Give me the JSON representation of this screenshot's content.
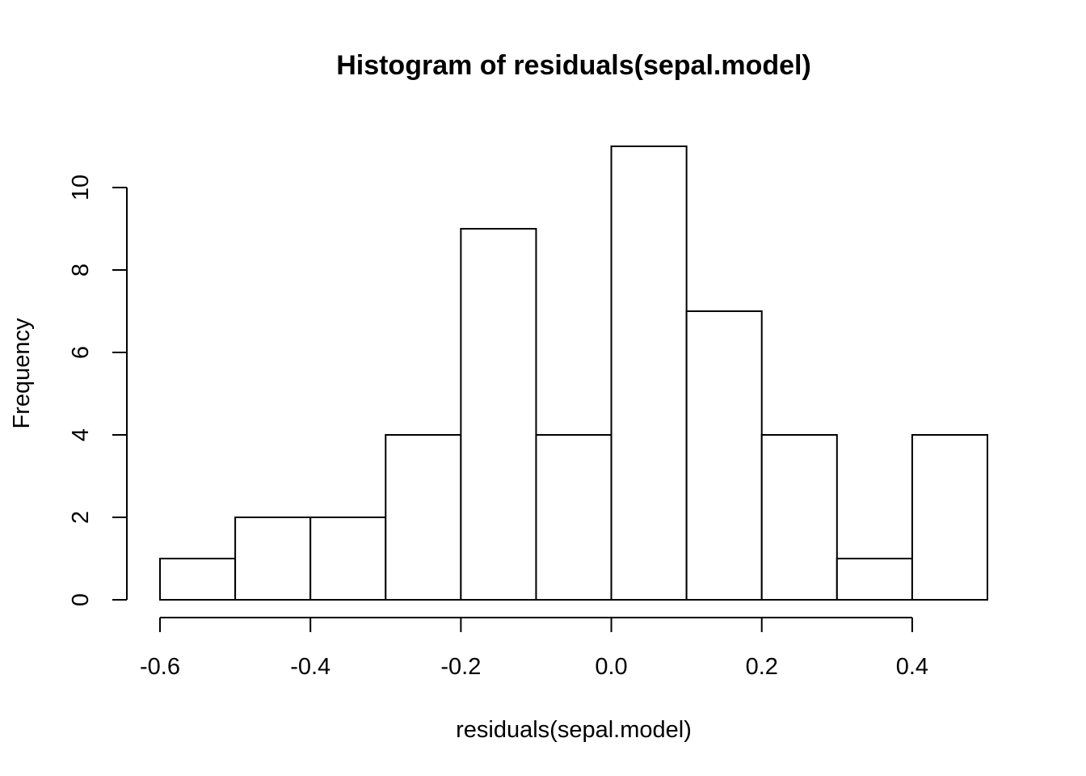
{
  "chart_data": {
    "type": "bar",
    "title": "Histogram of residuals(sepal.model)",
    "xlabel": "residuals(sepal.model)",
    "ylabel": "Frequency",
    "bins": [
      {
        "from": -0.6,
        "to": -0.5,
        "count": 1
      },
      {
        "from": -0.5,
        "to": -0.4,
        "count": 2
      },
      {
        "from": -0.4,
        "to": -0.3,
        "count": 2
      },
      {
        "from": -0.3,
        "to": -0.2,
        "count": 4
      },
      {
        "from": -0.2,
        "to": -0.1,
        "count": 9
      },
      {
        "from": -0.1,
        "to": 0.0,
        "count": 4
      },
      {
        "from": 0.0,
        "to": 0.1,
        "count": 11
      },
      {
        "from": 0.1,
        "to": 0.2,
        "count": 7
      },
      {
        "from": 0.2,
        "to": 0.3,
        "count": 4
      },
      {
        "from": 0.3,
        "to": 0.4,
        "count": 1
      },
      {
        "from": 0.4,
        "to": 0.5,
        "count": 4
      }
    ],
    "x_ticks": [
      {
        "value": -0.6,
        "label": "-0.6"
      },
      {
        "value": -0.4,
        "label": "-0.4"
      },
      {
        "value": -0.2,
        "label": "-0.2"
      },
      {
        "value": 0.0,
        "label": "0.0"
      },
      {
        "value": 0.2,
        "label": "0.2"
      },
      {
        "value": 0.4,
        "label": "0.4"
      }
    ],
    "y_ticks": [
      {
        "value": 0,
        "label": "0"
      },
      {
        "value": 2,
        "label": "2"
      },
      {
        "value": 4,
        "label": "4"
      },
      {
        "value": 6,
        "label": "6"
      },
      {
        "value": 8,
        "label": "8"
      },
      {
        "value": 10,
        "label": "10"
      }
    ],
    "xlim": [
      -0.6,
      0.5
    ],
    "ylim": [
      0,
      11
    ],
    "grid": false,
    "legend": "none",
    "colors": {
      "bar_fill": "#ffffff",
      "bar_stroke": "#000000",
      "background": "#ffffff"
    }
  }
}
